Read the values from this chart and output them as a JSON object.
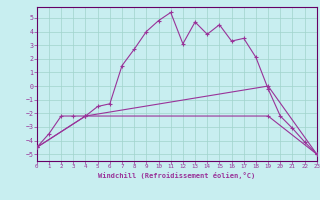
{
  "xlabel": "Windchill (Refroidissement éolien,°C)",
  "background_color": "#c8eef0",
  "grid_color": "#a0d4cc",
  "line_color": "#993399",
  "spine_color": "#660066",
  "xlim": [
    0,
    23
  ],
  "ylim": [
    -5.5,
    5.8
  ],
  "yticks": [
    -5,
    -4,
    -3,
    -2,
    -1,
    0,
    1,
    2,
    3,
    4,
    5
  ],
  "xticks": [
    0,
    1,
    2,
    3,
    4,
    5,
    6,
    7,
    8,
    9,
    10,
    11,
    12,
    13,
    14,
    15,
    16,
    17,
    18,
    19,
    20,
    21,
    22,
    23
  ],
  "line1_x": [
    0,
    1,
    2,
    3,
    4,
    5,
    6,
    7,
    8,
    9,
    10,
    11,
    12,
    13,
    14,
    15,
    16,
    17,
    18,
    19,
    20,
    21,
    22,
    23
  ],
  "line1_y": [
    -4.5,
    -3.5,
    -2.2,
    -2.2,
    -2.2,
    -1.5,
    -1.3,
    1.5,
    2.7,
    4.0,
    4.8,
    5.4,
    3.1,
    4.7,
    3.8,
    4.5,
    3.3,
    3.5,
    2.1,
    -0.2,
    -2.2,
    -3.1,
    -4.1,
    -5.0
  ],
  "line2_x": [
    0,
    4,
    19,
    23
  ],
  "line2_y": [
    -4.5,
    -2.2,
    -2.2,
    -5.0
  ],
  "line3_x": [
    0,
    4,
    19,
    23
  ],
  "line3_y": [
    -4.5,
    -2.2,
    0.0,
    -5.0
  ]
}
